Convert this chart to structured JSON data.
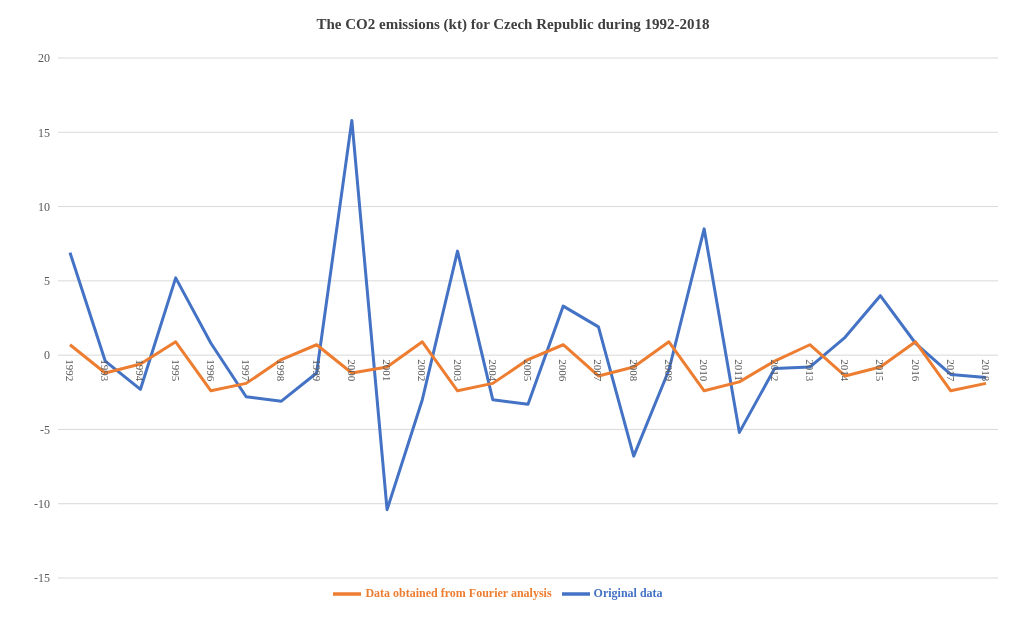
{
  "chart_data": {
    "type": "line",
    "title": "The CO2 emissions (kt) for Czech Republic during 1992-2018",
    "categories": [
      "1992",
      "1993",
      "1994",
      "1995",
      "1996",
      "1997",
      "1998",
      "1999",
      "2000",
      "2001",
      "2002",
      "2003",
      "2004",
      "2005",
      "2006",
      "2007",
      "2008",
      "2009",
      "2010",
      "2011",
      "2012",
      "2013",
      "2014",
      "2015",
      "2016",
      "2017",
      "2018"
    ],
    "series": [
      {
        "name": "Original data",
        "color": "#4472c4",
        "values": [
          6.9,
          -0.4,
          -2.3,
          5.2,
          0.8,
          -2.8,
          -3.1,
          -1.2,
          15.8,
          -10.4,
          -3.0,
          7.0,
          -3.0,
          -3.3,
          3.3,
          1.9,
          -6.8,
          -1.0,
          8.5,
          -5.2,
          -0.9,
          -0.8,
          1.2,
          4.0,
          0.8,
          -1.3,
          -1.5
        ]
      },
      {
        "name": "Data obtained from Fourier analysis",
        "color": "#ed7d31",
        "values": [
          0.7,
          -1.2,
          -0.6,
          0.9,
          -2.4,
          -1.9,
          -0.3,
          0.7,
          -1.2,
          -0.8,
          0.9,
          -2.4,
          -1.9,
          -0.3,
          0.7,
          -1.4,
          -0.8,
          0.9,
          -2.4,
          -1.8,
          -0.4,
          0.7,
          -1.4,
          -0.8,
          0.9,
          -2.4,
          -1.9
        ]
      }
    ],
    "ylim": [
      -15,
      20
    ],
    "yticks": [
      -15,
      -10,
      -5,
      0,
      5,
      10,
      15,
      20
    ],
    "grid": "y",
    "legend": "bottom",
    "marker": "none",
    "line_style": "solid"
  }
}
